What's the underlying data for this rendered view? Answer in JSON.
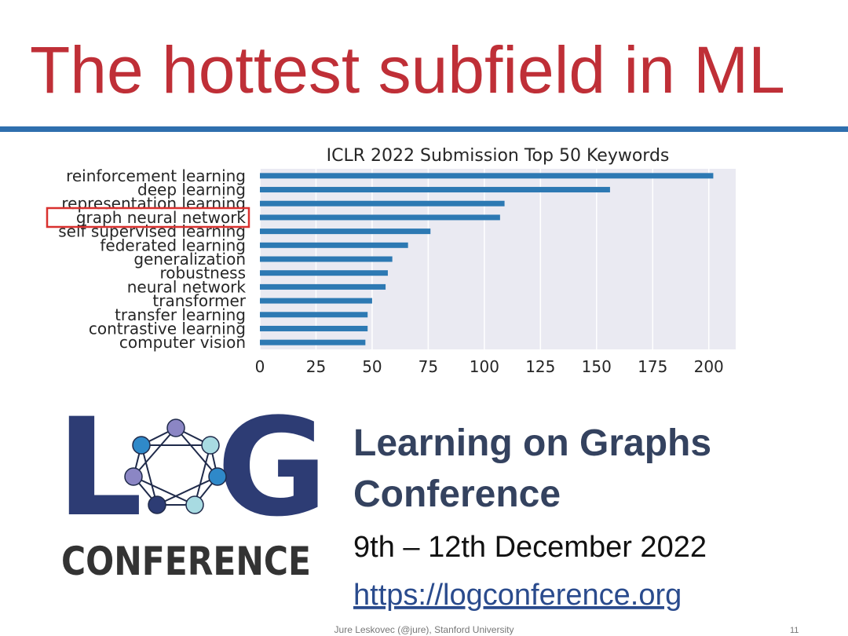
{
  "slide_title": "The hottest subfield in ML",
  "chart_data": {
    "type": "bar",
    "orientation": "horizontal",
    "title": "ICLR 2022 Submission Top 50 Keywords",
    "categories": [
      "reinforcement learning",
      "deep learning",
      "representation learning",
      "graph neural network",
      "self supervised learning",
      "federated learning",
      "generalization",
      "robustness",
      "neural network",
      "transformer",
      "transfer learning",
      "contrastive learning",
      "computer vision"
    ],
    "values": [
      202,
      156,
      109,
      107,
      76,
      66,
      59,
      57,
      56,
      50,
      48,
      48,
      47
    ],
    "color": "#2d79b3",
    "xlim": [
      0,
      212
    ],
    "xticks": [
      0,
      25,
      50,
      75,
      100,
      125,
      150,
      175,
      200
    ],
    "grid": true
  },
  "logo": {
    "left": "L",
    "right": "G",
    "caption": "CONFERENCE"
  },
  "conference": {
    "name_line1": "Learning on Graphs",
    "name_line2": "Conference",
    "dates": "9th – 12th December 2022",
    "url": "https://logconference.org"
  },
  "footer": {
    "author": "Jure Leskovec (@jure), Stanford University",
    "page": "11"
  }
}
